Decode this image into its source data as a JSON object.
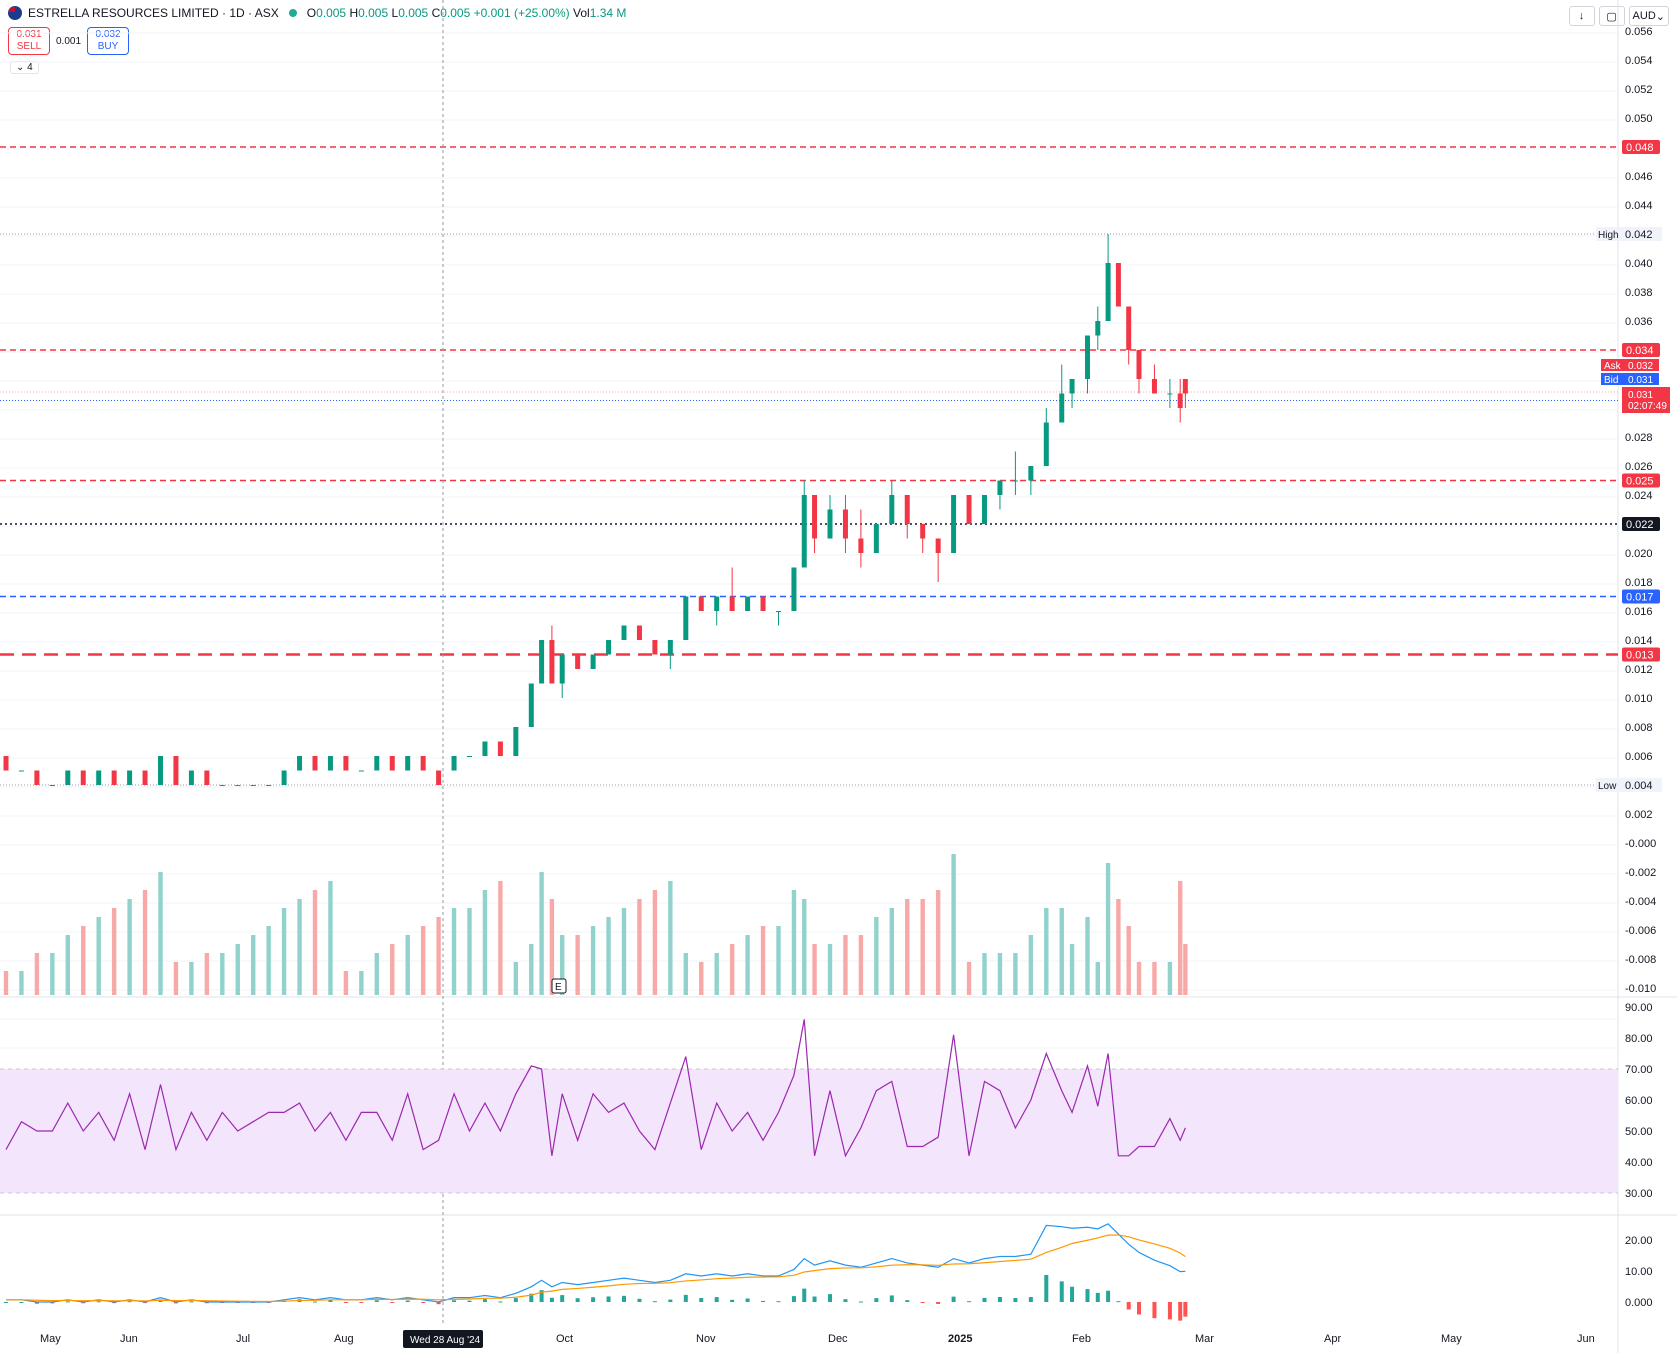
{
  "header": {
    "title": "ESTRELLA RESOURCES LIMITED · 1D · ASX",
    "o_label": "O",
    "o": "0.005",
    "h_label": "H",
    "h": "0.005",
    "l_label": "L",
    "l": "0.005",
    "c_label": "C",
    "c": "0.005",
    "change": "+0.001 (+25.00%)",
    "vol_label": "Vol",
    "vol": "1.34 M"
  },
  "order": {
    "sell_price": "0.031",
    "sell_label": "SELL",
    "spread": "0.001",
    "buy_price": "0.032",
    "buy_label": "BUY"
  },
  "collapse_label": "4",
  "currency": "AUD",
  "colors": {
    "up": "#089981",
    "down": "#f23645",
    "rsi": "#9c27b0",
    "macd": "#2196f3",
    "signal": "#ff9800"
  },
  "price_axis": {
    "ticks": [
      "0.056",
      "0.054",
      "0.052",
      "0.050",
      "0.046",
      "0.044",
      "0.040",
      "0.038",
      "0.036",
      "0.028",
      "0.026",
      "0.024",
      "0.020",
      "0.018",
      "0.016",
      "0.014",
      "0.012",
      "0.010",
      "0.008",
      "0.006",
      "0.002",
      "-0.000",
      "-0.002",
      "-0.004",
      "-0.006",
      "-0.008",
      "-0.010"
    ],
    "tick_values": [
      0.056,
      0.054,
      0.052,
      0.05,
      0.046,
      0.044,
      0.04,
      0.038,
      0.036,
      0.028,
      0.026,
      0.024,
      0.02,
      0.018,
      0.016,
      0.014,
      0.012,
      0.01,
      0.008,
      0.006,
      0.002,
      0.0,
      -0.002,
      -0.004,
      -0.006,
      -0.008,
      -0.01
    ]
  },
  "levels": [
    {
      "value": 0.048,
      "label": "0.048",
      "color": "#f23645",
      "style": "dash"
    },
    {
      "value": 0.034,
      "label": "0.034",
      "color": "#f23645",
      "style": "dash"
    },
    {
      "value": 0.025,
      "label": "0.025",
      "color": "#f23645",
      "style": "dash"
    },
    {
      "value": 0.022,
      "label": "0.022",
      "color": "#131722",
      "style": "dot"
    },
    {
      "value": 0.017,
      "label": "0.017",
      "color": "#2962ff",
      "style": "dash"
    },
    {
      "value": 0.013,
      "label": "0.013",
      "color": "#f23645",
      "style": "longdash"
    }
  ],
  "markers": {
    "high_label": "High",
    "high": 0.042,
    "high_text": "0.042",
    "low_label": "Low",
    "low": 0.004,
    "low_text": "0.004",
    "ask_label": "Ask",
    "ask": 0.032,
    "ask_text": "0.032",
    "bid_label": "Bid",
    "bid": 0.031,
    "bid_text": "0.031",
    "last": 0.031,
    "last_text": "0.031",
    "countdown": "02:07:49"
  },
  "rsi_axis": {
    "ticks": [
      "90.00",
      "80.00",
      "70.00",
      "60.00",
      "50.00",
      "40.00",
      "30.00"
    ],
    "values": [
      90,
      80,
      70,
      60,
      50,
      40,
      30
    ]
  },
  "macd_axis": {
    "ticks": [
      "20.00",
      "10.00",
      "0.000"
    ],
    "values": [
      20,
      10,
      0
    ]
  },
  "time_axis": {
    "labels": [
      "May",
      "Jun",
      "Jul",
      "Aug",
      "Oct",
      "Nov",
      "Dec",
      "2025",
      "Feb",
      "Mar",
      "Apr",
      "May",
      "Jun"
    ],
    "crosshair_label": "Wed 28 Aug '24"
  },
  "earnings_badge": "E",
  "chart_data": {
    "type": "candlestick",
    "symbol": "ESTRELLA RESOURCES LIMITED",
    "interval": "1D",
    "exchange": "ASX",
    "price_series": [
      [
        0,
        0.006,
        0.006,
        0.005,
        0.005
      ],
      [
        3,
        0.005,
        0.005,
        0.005,
        0.005
      ],
      [
        6,
        0.005,
        0.005,
        0.004,
        0.004
      ],
      [
        9,
        0.004,
        0.004,
        0.004,
        0.004
      ],
      [
        12,
        0.004,
        0.005,
        0.004,
        0.005
      ],
      [
        15,
        0.005,
        0.005,
        0.004,
        0.004
      ],
      [
        18,
        0.004,
        0.005,
        0.004,
        0.005
      ],
      [
        21,
        0.005,
        0.005,
        0.004,
        0.004
      ],
      [
        24,
        0.004,
        0.005,
        0.004,
        0.005
      ],
      [
        27,
        0.005,
        0.005,
        0.004,
        0.004
      ],
      [
        30,
        0.004,
        0.006,
        0.004,
        0.006
      ],
      [
        33,
        0.006,
        0.006,
        0.004,
        0.004
      ],
      [
        36,
        0.004,
        0.005,
        0.004,
        0.005
      ],
      [
        39,
        0.005,
        0.005,
        0.004,
        0.004
      ],
      [
        42,
        0.004,
        0.004,
        0.004,
        0.004
      ],
      [
        45,
        0.004,
        0.004,
        0.004,
        0.004
      ],
      [
        48,
        0.004,
        0.004,
        0.004,
        0.004
      ],
      [
        51,
        0.004,
        0.004,
        0.004,
        0.004
      ],
      [
        54,
        0.004,
        0.005,
        0.004,
        0.005
      ],
      [
        57,
        0.005,
        0.006,
        0.005,
        0.006
      ],
      [
        60,
        0.006,
        0.006,
        0.005,
        0.005
      ],
      [
        63,
        0.005,
        0.006,
        0.005,
        0.006
      ],
      [
        66,
        0.006,
        0.006,
        0.005,
        0.005
      ],
      [
        69,
        0.005,
        0.005,
        0.005,
        0.005
      ],
      [
        72,
        0.005,
        0.006,
        0.005,
        0.006
      ],
      [
        75,
        0.006,
        0.006,
        0.005,
        0.005
      ],
      [
        78,
        0.005,
        0.006,
        0.005,
        0.006
      ],
      [
        81,
        0.006,
        0.006,
        0.005,
        0.005
      ],
      [
        84,
        0.005,
        0.005,
        0.004,
        0.004
      ],
      [
        87,
        0.005,
        0.006,
        0.005,
        0.006
      ],
      [
        90,
        0.006,
        0.006,
        0.006,
        0.006
      ],
      [
        93,
        0.006,
        0.007,
        0.006,
        0.007
      ],
      [
        96,
        0.007,
        0.007,
        0.006,
        0.006
      ],
      [
        99,
        0.006,
        0.008,
        0.006,
        0.008
      ],
      [
        102,
        0.008,
        0.011,
        0.008,
        0.011
      ],
      [
        104,
        0.011,
        0.014,
        0.011,
        0.014
      ],
      [
        106,
        0.014,
        0.015,
        0.011,
        0.011
      ],
      [
        108,
        0.011,
        0.013,
        0.01,
        0.013
      ],
      [
        111,
        0.013,
        0.013,
        0.012,
        0.012
      ],
      [
        114,
        0.012,
        0.013,
        0.012,
        0.013
      ],
      [
        117,
        0.013,
        0.014,
        0.013,
        0.014
      ],
      [
        120,
        0.014,
        0.015,
        0.014,
        0.015
      ],
      [
        123,
        0.015,
        0.015,
        0.014,
        0.014
      ],
      [
        126,
        0.014,
        0.014,
        0.013,
        0.013
      ],
      [
        129,
        0.013,
        0.014,
        0.012,
        0.014
      ],
      [
        132,
        0.014,
        0.017,
        0.014,
        0.017
      ],
      [
        135,
        0.017,
        0.017,
        0.016,
        0.016
      ],
      [
        138,
        0.016,
        0.017,
        0.015,
        0.017
      ],
      [
        141,
        0.017,
        0.019,
        0.016,
        0.016
      ],
      [
        144,
        0.016,
        0.017,
        0.016,
        0.017
      ],
      [
        147,
        0.017,
        0.017,
        0.016,
        0.016
      ],
      [
        150,
        0.016,
        0.016,
        0.015,
        0.016
      ],
      [
        153,
        0.016,
        0.019,
        0.016,
        0.019
      ],
      [
        155,
        0.019,
        0.025,
        0.019,
        0.024
      ],
      [
        157,
        0.024,
        0.024,
        0.02,
        0.021
      ],
      [
        160,
        0.021,
        0.024,
        0.021,
        0.023
      ],
      [
        163,
        0.023,
        0.024,
        0.02,
        0.021
      ],
      [
        166,
        0.021,
        0.023,
        0.019,
        0.02
      ],
      [
        169,
        0.02,
        0.022,
        0.02,
        0.022
      ],
      [
        172,
        0.022,
        0.025,
        0.022,
        0.024
      ],
      [
        175,
        0.024,
        0.024,
        0.021,
        0.022
      ],
      [
        178,
        0.022,
        0.022,
        0.02,
        0.021
      ],
      [
        181,
        0.021,
        0.021,
        0.018,
        0.02
      ],
      [
        184,
        0.02,
        0.024,
        0.02,
        0.024
      ],
      [
        187,
        0.024,
        0.024,
        0.022,
        0.022
      ],
      [
        190,
        0.022,
        0.024,
        0.022,
        0.024
      ],
      [
        193,
        0.024,
        0.025,
        0.023,
        0.025
      ],
      [
        196,
        0.025,
        0.027,
        0.024,
        0.025
      ],
      [
        199,
        0.025,
        0.026,
        0.024,
        0.026
      ],
      [
        202,
        0.026,
        0.03,
        0.026,
        0.029
      ],
      [
        205,
        0.029,
        0.033,
        0.029,
        0.031
      ],
      [
        207,
        0.031,
        0.032,
        0.03,
        0.032
      ],
      [
        210,
        0.032,
        0.035,
        0.031,
        0.035
      ],
      [
        212,
        0.035,
        0.037,
        0.034,
        0.036
      ],
      [
        214,
        0.036,
        0.042,
        0.036,
        0.04
      ],
      [
        216,
        0.04,
        0.04,
        0.037,
        0.037
      ],
      [
        218,
        0.037,
        0.037,
        0.033,
        0.034
      ],
      [
        220,
        0.034,
        0.034,
        0.031,
        0.032
      ],
      [
        223,
        0.032,
        0.033,
        0.031,
        0.031
      ],
      [
        226,
        0.031,
        0.032,
        0.03,
        0.031
      ],
      [
        228,
        0.031,
        0.032,
        0.029,
        0.03
      ],
      [
        229,
        0.032,
        0.032,
        0.03,
        0.031
      ]
    ],
    "ylim": [
      -0.01,
      0.057
    ]
  }
}
